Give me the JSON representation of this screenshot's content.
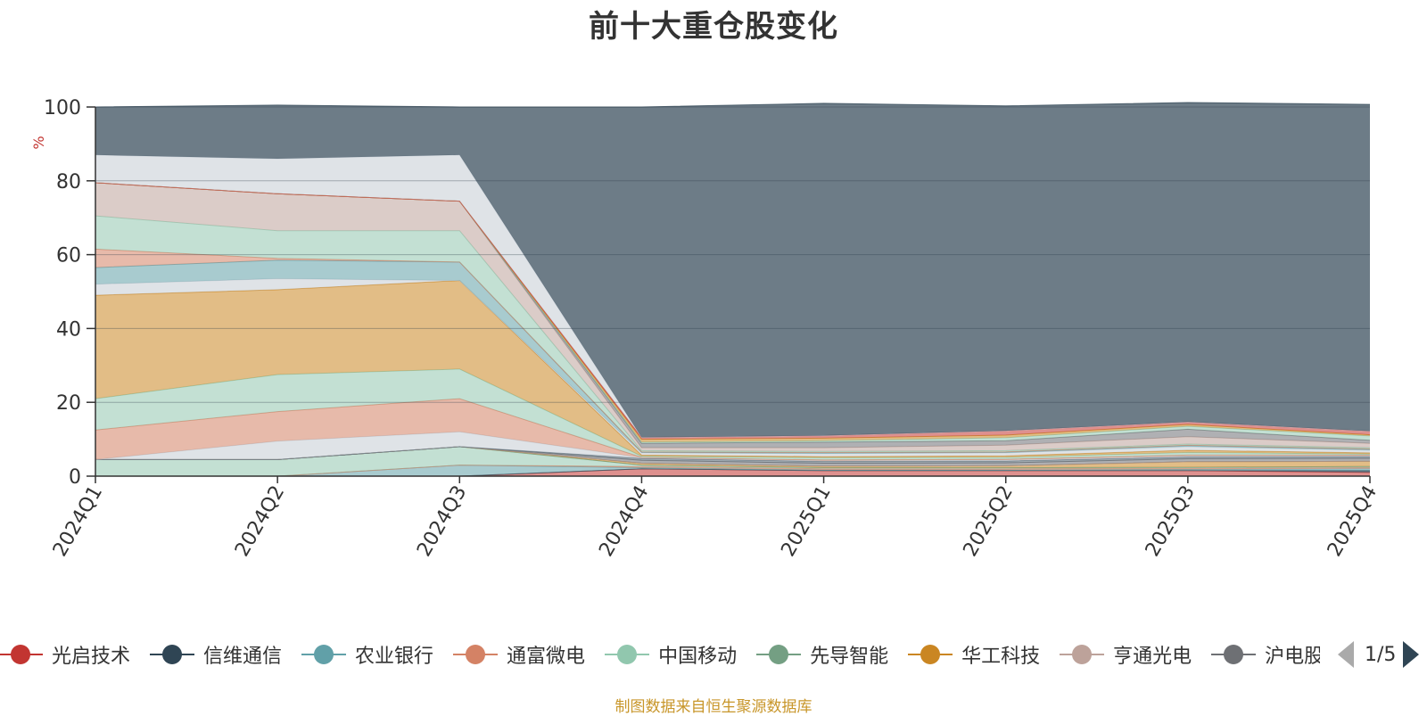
{
  "title": "前十大重仓股变化",
  "source_note": "制图数据来自恒生聚源数据库",
  "pager": {
    "text": "1/5"
  },
  "chart_data": {
    "type": "area",
    "stacked": true,
    "title": "前十大重仓股变化",
    "ylabel": "%",
    "ylim": [
      0,
      100
    ],
    "yticks": [
      0,
      20,
      40,
      60,
      80,
      100
    ],
    "grid": true,
    "legend_position": "bottom",
    "categories": [
      "2024Q1",
      "2024Q2",
      "2024Q3",
      "2024Q4",
      "2025Q1",
      "2025Q2",
      "2025Q3",
      "2025Q4"
    ],
    "series": [
      {
        "name": "光启技术",
        "color": "#c23531",
        "values": [
          0,
          0,
          0,
          2,
          1.5,
          1.5,
          1.5,
          1
        ]
      },
      {
        "name": "信维通信",
        "color": "#2f4554",
        "values": [
          0,
          0,
          0,
          0,
          0,
          0,
          0,
          0.5
        ]
      },
      {
        "name": "农业银行",
        "color": "#61a0a8",
        "values": [
          0,
          0,
          3,
          0.3,
          0.2,
          0.2,
          0.3,
          0.5
        ]
      },
      {
        "name": "通富微电",
        "color": "#d48265",
        "values": [
          0,
          0,
          0,
          0.3,
          0.3,
          0.3,
          0.3,
          0.3
        ]
      },
      {
        "name": "中国移动",
        "color": "#91c7ae",
        "values": [
          4.5,
          4.5,
          5,
          0.4,
          0.3,
          0.3,
          0.3,
          0.3
        ]
      },
      {
        "name": "先导智能",
        "color": "#749f83",
        "values": [
          0,
          0,
          0,
          0,
          0,
          0,
          0,
          0
        ]
      },
      {
        "name": "华工科技",
        "color": "#ca8622",
        "values": [
          0,
          0,
          0,
          0.5,
          0.4,
          0.5,
          1.5,
          1.4
        ]
      },
      {
        "name": "亨通光电",
        "color": "#bda29a",
        "values": [
          0,
          0,
          0,
          0,
          0,
          0,
          0,
          0
        ]
      },
      {
        "name": "沪电股份",
        "color": "#6e7074",
        "values": [
          0,
          0,
          0,
          0.8,
          0.8,
          0.8,
          0.8,
          0.8
        ]
      },
      {
        "name": "",
        "color": "#546570",
        "values": [
          0,
          0,
          0,
          0.5,
          0.5,
          0.5,
          0.5,
          0.5
        ]
      },
      {
        "name": "",
        "color": "#c4ccd3",
        "values": [
          0,
          5,
          4,
          0.2,
          0.2,
          0.3,
          0.3,
          0.2
        ]
      },
      {
        "name": "",
        "color": "#d48265",
        "values": [
          8,
          8,
          9,
          0.1,
          0.2,
          0.2,
          0.2,
          0.2
        ]
      },
      {
        "name": "",
        "color": "#91c7ae",
        "values": [
          8.5,
          10,
          8,
          0.3,
          0.6,
          0.5,
          0.7,
          0.3
        ]
      },
      {
        "name": "",
        "color": "#ca8622",
        "values": [
          28,
          23,
          24,
          0.3,
          0.3,
          0.4,
          0.6,
          0.3
        ]
      },
      {
        "name": "",
        "color": "#c4ccd3",
        "values": [
          3,
          3,
          0,
          0.6,
          0.8,
          0.8,
          1,
          0.7
        ]
      },
      {
        "name": "",
        "color": "#61a0a8",
        "values": [
          4.5,
          5,
          5,
          0.2,
          0.2,
          0.2,
          0.3,
          0.3
        ]
      },
      {
        "name": "",
        "color": "#d48265",
        "values": [
          5,
          0.5,
          0,
          0.1,
          0.1,
          0.1,
          0.1,
          0.1
        ]
      },
      {
        "name": "",
        "color": "#91c7ae",
        "values": [
          9,
          7.5,
          8.5,
          0.3,
          0.3,
          0.3,
          0.3,
          0.3
        ]
      },
      {
        "name": "",
        "color": "#bda29a",
        "values": [
          9,
          10,
          8,
          0.8,
          1,
          1.5,
          2,
          1.2
        ]
      },
      {
        "name": "",
        "color": "#6e7074",
        "values": [
          0,
          0,
          0,
          1.2,
          1.5,
          1.2,
          2,
          0.8
        ]
      },
      {
        "name": "",
        "color": "#91c7ae",
        "values": [
          0,
          0,
          0,
          0.3,
          0.4,
          0.8,
          0.8,
          1.2
        ]
      },
      {
        "name": "",
        "color": "#ca8622",
        "values": [
          0,
          0,
          0,
          0.8,
          0.7,
          0.7,
          0.5,
          0.3
        ]
      },
      {
        "name": "",
        "color": "#c23531",
        "values": [
          0,
          0,
          0,
          0.5,
          0.7,
          1.2,
          0.7,
          1
        ]
      },
      {
        "name": "",
        "color": "#c4ccd3",
        "values": [
          7.5,
          9.5,
          12.5,
          0,
          0,
          0,
          0,
          0
        ]
      },
      {
        "name": "",
        "color": "#2f4554",
        "values": [
          13,
          14.5,
          13,
          89.5,
          90,
          88,
          86.5,
          88.5
        ]
      }
    ]
  },
  "legend_items": [
    {
      "name": "光启技术",
      "color": "#c23531"
    },
    {
      "name": "信维通信",
      "color": "#2f4554"
    },
    {
      "name": "农业银行",
      "color": "#61a0a8"
    },
    {
      "name": "通富微电",
      "color": "#d48265"
    },
    {
      "name": "中国移动",
      "color": "#91c7ae"
    },
    {
      "name": "先导智能",
      "color": "#749f83"
    },
    {
      "name": "华工科技",
      "color": "#ca8622"
    },
    {
      "name": "亨通光电",
      "color": "#bda29a"
    },
    {
      "name": "沪电股份",
      "color": "#6e7074"
    }
  ]
}
